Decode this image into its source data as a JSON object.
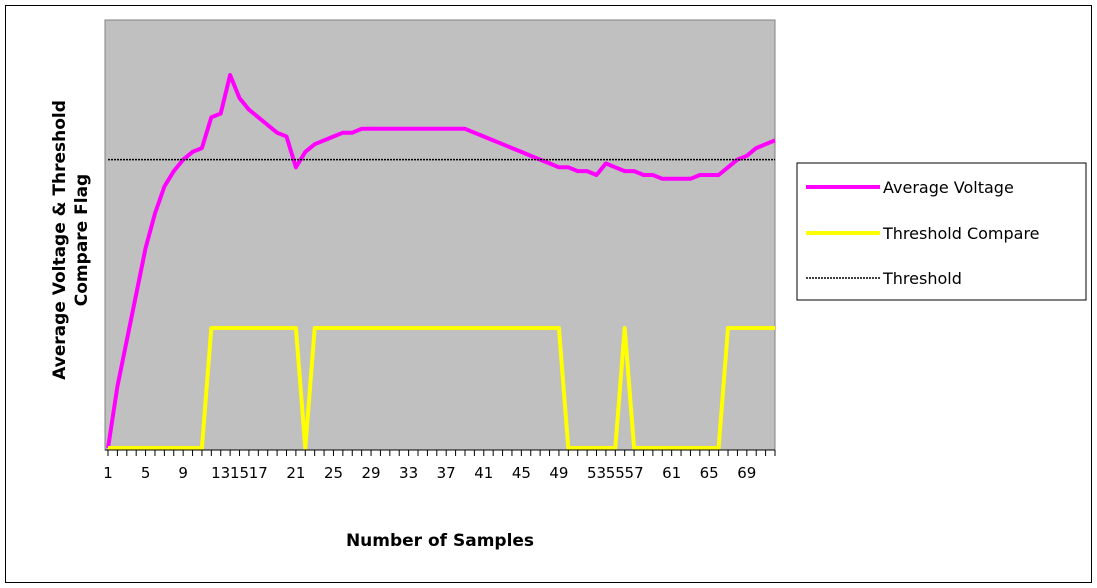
{
  "chart_data": {
    "type": "line",
    "title": "",
    "xlabel": "Number of Samples",
    "ylabel_line1": "Average Voltage & Threshold",
    "ylabel_line2": "Compare Flag",
    "x_tick_labels": [
      "1",
      "5",
      "9",
      "13",
      "15",
      "17",
      "21",
      "25",
      "29",
      "33",
      "37",
      "41",
      "45",
      "49",
      "53",
      "55",
      "57",
      "61",
      "65",
      "69"
    ],
    "x_range": [
      1,
      72
    ],
    "y_range": [
      0,
      1
    ],
    "grid": false,
    "legend_position": "right",
    "background_color": "#c0c0c0",
    "series": [
      {
        "name": "Average Voltage",
        "color": "#ff00ff",
        "style": "solid",
        "x": [
          1,
          2,
          3,
          4,
          5,
          6,
          7,
          8,
          9,
          10,
          11,
          12,
          13,
          14,
          15,
          16,
          17,
          18,
          19,
          20,
          21,
          22,
          23,
          24,
          25,
          26,
          27,
          28,
          29,
          30,
          31,
          32,
          33,
          34,
          35,
          36,
          37,
          38,
          39,
          40,
          41,
          42,
          43,
          44,
          45,
          46,
          47,
          48,
          49,
          50,
          51,
          52,
          53,
          54,
          55,
          56,
          57,
          58,
          59,
          60,
          61,
          62,
          63,
          64,
          65,
          66,
          67,
          68,
          69,
          70,
          71,
          72
        ],
        "values": [
          0.0,
          0.16,
          0.28,
          0.4,
          0.52,
          0.61,
          0.68,
          0.72,
          0.75,
          0.77,
          0.78,
          0.86,
          0.87,
          0.97,
          0.91,
          0.88,
          0.86,
          0.84,
          0.82,
          0.81,
          0.73,
          0.77,
          0.79,
          0.8,
          0.81,
          0.82,
          0.82,
          0.83,
          0.83,
          0.83,
          0.83,
          0.83,
          0.83,
          0.83,
          0.83,
          0.83,
          0.83,
          0.83,
          0.83,
          0.82,
          0.81,
          0.8,
          0.79,
          0.78,
          0.77,
          0.76,
          0.75,
          0.74,
          0.73,
          0.73,
          0.72,
          0.72,
          0.71,
          0.74,
          0.73,
          0.72,
          0.72,
          0.71,
          0.71,
          0.7,
          0.7,
          0.7,
          0.7,
          0.71,
          0.71,
          0.71,
          0.73,
          0.75,
          0.76,
          0.78,
          0.79,
          0.8
        ]
      },
      {
        "name": "Threshold Compare",
        "color": "#ffff00",
        "style": "solid",
        "x": [
          1,
          2,
          3,
          4,
          5,
          6,
          7,
          8,
          9,
          10,
          11,
          12,
          13,
          14,
          15,
          16,
          17,
          18,
          19,
          20,
          21,
          22,
          23,
          24,
          25,
          26,
          27,
          28,
          29,
          30,
          31,
          32,
          33,
          34,
          35,
          36,
          37,
          38,
          39,
          40,
          41,
          42,
          43,
          44,
          45,
          46,
          47,
          48,
          49,
          50,
          51,
          52,
          53,
          54,
          55,
          56,
          57,
          58,
          59,
          60,
          61,
          62,
          63,
          64,
          65,
          66,
          67,
          68,
          69,
          70,
          71,
          72
        ],
        "values": [
          0,
          0,
          0,
          0,
          0,
          0,
          0,
          0,
          0,
          0,
          0,
          1,
          1,
          1,
          1,
          1,
          1,
          1,
          1,
          1,
          1,
          0,
          1,
          1,
          1,
          1,
          1,
          1,
          1,
          1,
          1,
          1,
          1,
          1,
          1,
          1,
          1,
          1,
          1,
          1,
          1,
          1,
          1,
          1,
          1,
          1,
          1,
          1,
          1,
          0,
          0,
          0,
          0,
          0,
          0,
          1,
          0,
          0,
          0,
          0,
          0,
          0,
          0,
          0,
          0,
          0,
          1,
          1,
          1,
          1,
          1,
          1
        ]
      },
      {
        "name": "Threshold",
        "color": "#000000",
        "style": "dotted",
        "x": [
          1,
          72
        ],
        "values": [
          0.75,
          0.75
        ]
      }
    ]
  }
}
